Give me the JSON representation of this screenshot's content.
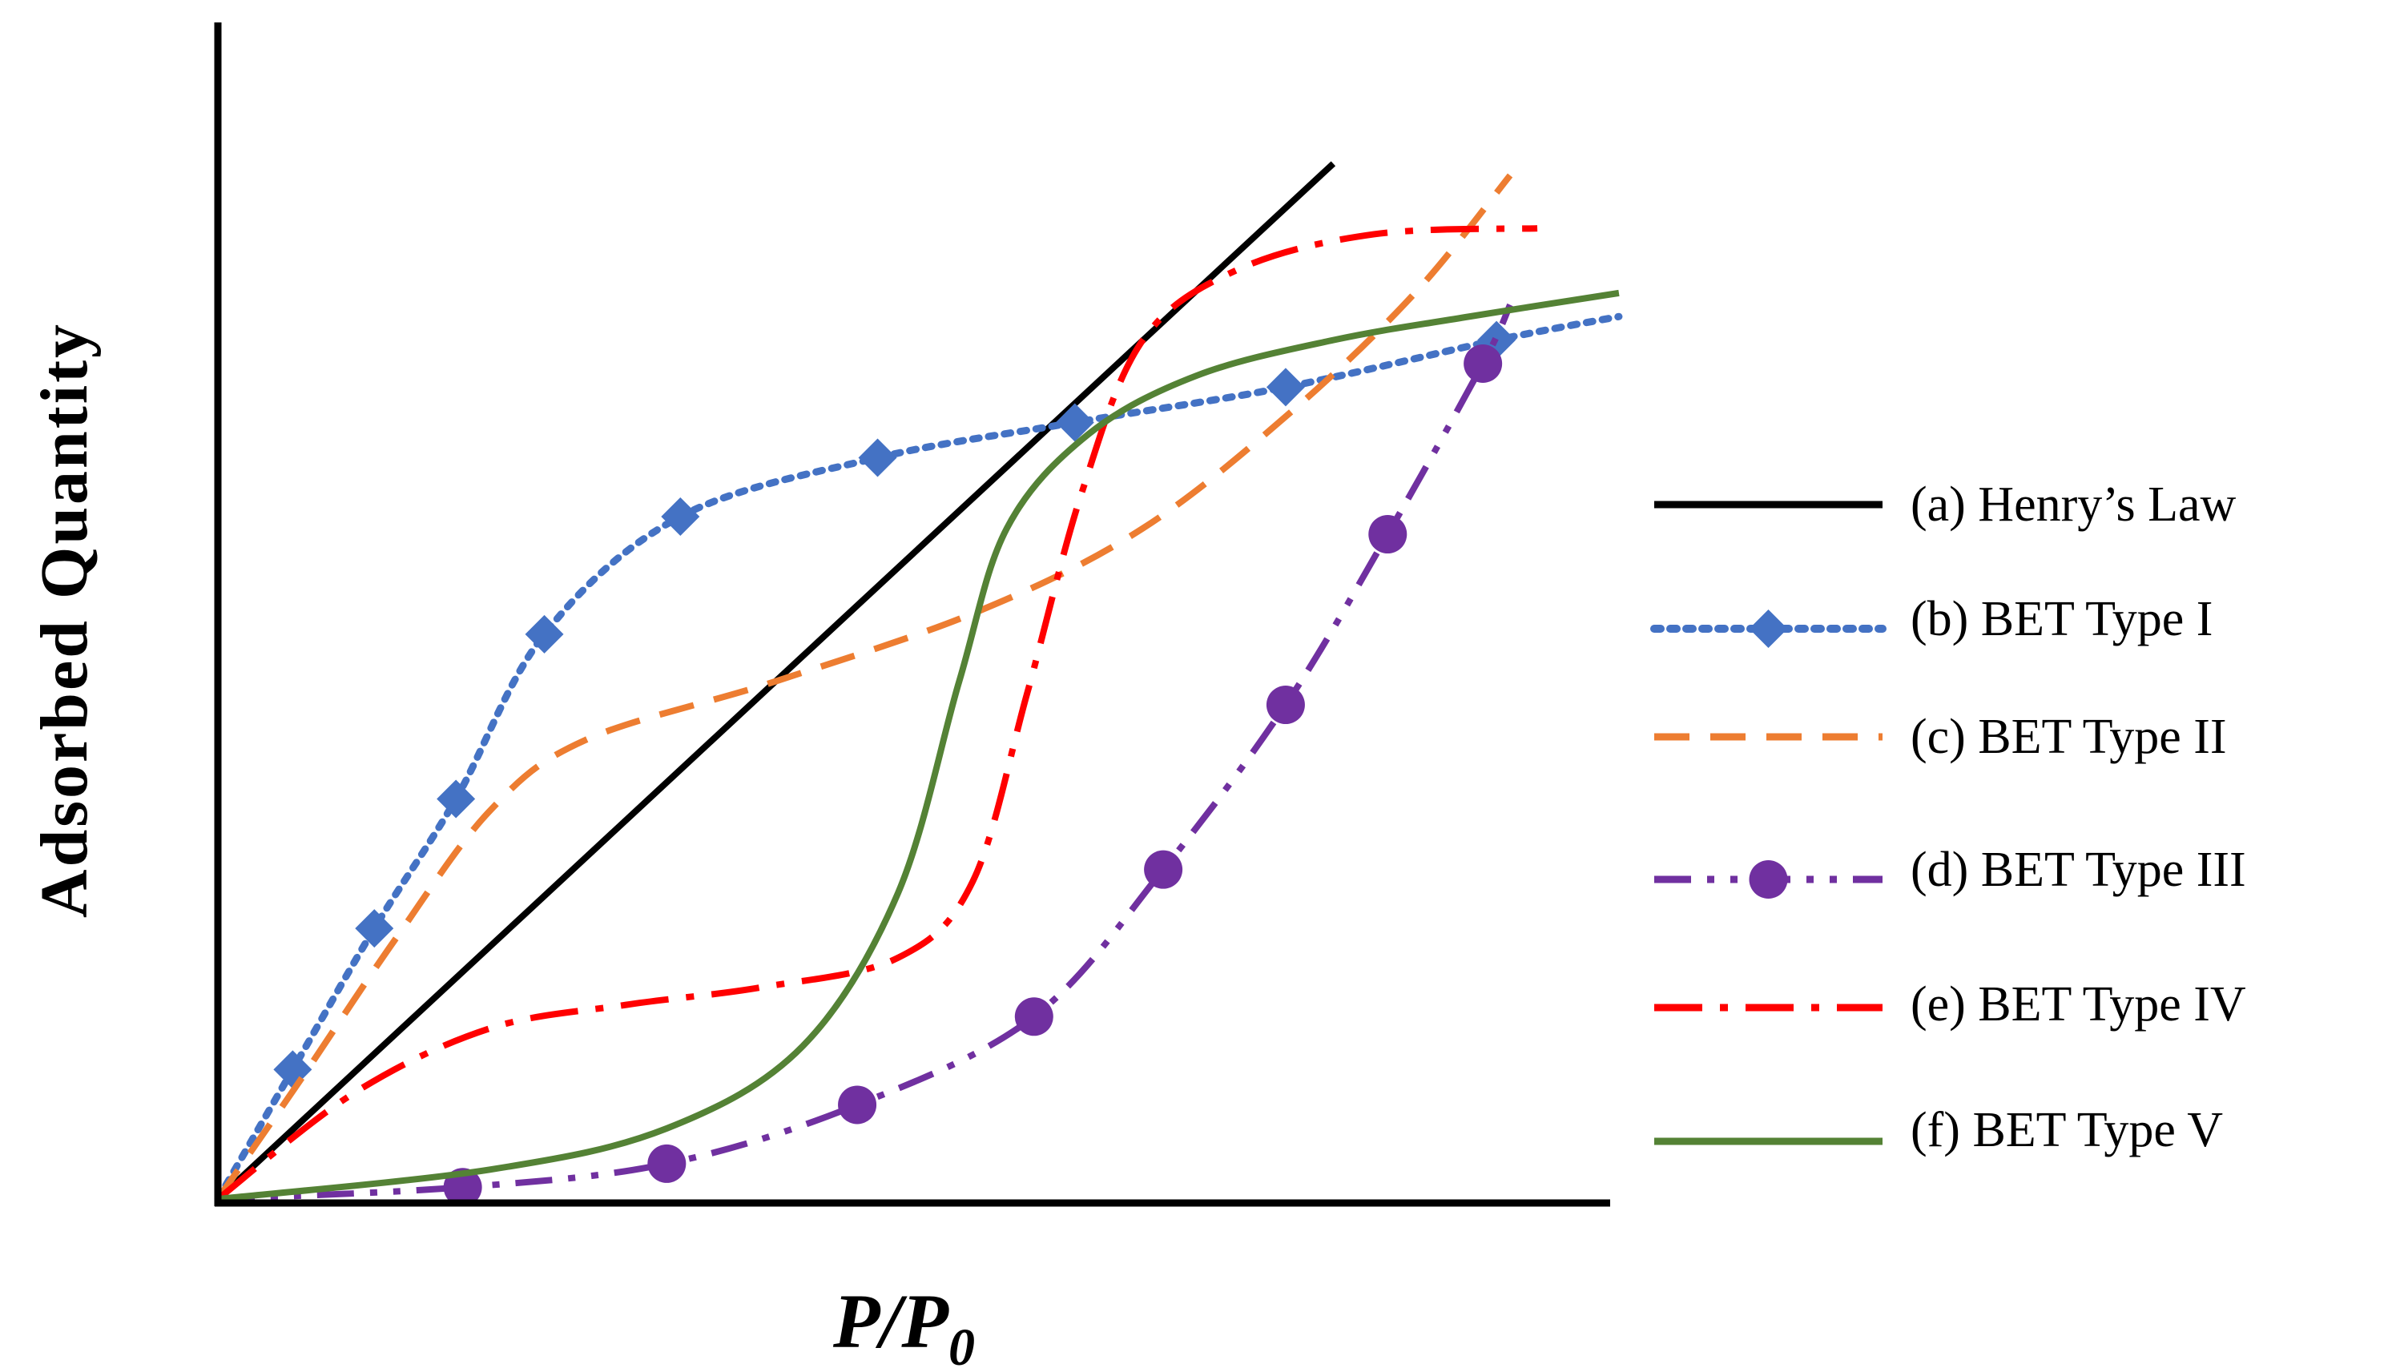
{
  "chart_data": {
    "type": "line",
    "title": "",
    "xlabel": "P/P",
    "xlabel_subscript": "0",
    "ylabel": "Adsorbed Quantity",
    "xlim": [
      0,
      1
    ],
    "ylim": [
      0,
      1
    ],
    "grid": false,
    "legend_position": "right",
    "series": [
      {
        "name": "(a)  Henry’s Law",
        "color": "#000000",
        "style": "solid",
        "marker": "none",
        "points": [
          [
            0,
            0
          ],
          [
            0.82,
            0.88
          ]
        ]
      },
      {
        "name": "(b)  BET Type I",
        "color": "#4472C4",
        "style": "dotted",
        "marker": "diamond",
        "points": [
          [
            0,
            0
          ],
          [
            0.055,
            0.11
          ],
          [
            0.115,
            0.23
          ],
          [
            0.175,
            0.34
          ],
          [
            0.24,
            0.48
          ],
          [
            0.34,
            0.58
          ],
          [
            0.485,
            0.63
          ],
          [
            0.63,
            0.66
          ],
          [
            0.785,
            0.69
          ],
          [
            0.94,
            0.73
          ],
          [
            1.03,
            0.75
          ]
        ],
        "marker_points": [
          [
            0.055,
            0.11
          ],
          [
            0.115,
            0.23
          ],
          [
            0.175,
            0.34
          ],
          [
            0.24,
            0.48
          ],
          [
            0.34,
            0.58
          ],
          [
            0.485,
            0.63
          ],
          [
            0.63,
            0.66
          ],
          [
            0.785,
            0.69
          ],
          [
            0.94,
            0.73
          ]
        ]
      },
      {
        "name": "(c)  BET Type II",
        "color": "#ED7D31",
        "style": "dashed",
        "marker": "none",
        "points": [
          [
            0,
            0
          ],
          [
            0.06,
            0.1
          ],
          [
            0.13,
            0.22
          ],
          [
            0.2,
            0.33
          ],
          [
            0.27,
            0.39
          ],
          [
            0.41,
            0.44
          ],
          [
            0.56,
            0.5
          ],
          [
            0.68,
            0.57
          ],
          [
            0.79,
            0.67
          ],
          [
            0.88,
            0.77
          ],
          [
            0.95,
            0.87
          ]
        ]
      },
      {
        "name": "(d)  BET Type III",
        "color": "#7030A0",
        "style": "dash-dot-dot",
        "marker": "circle",
        "points": [
          [
            0,
            0
          ],
          [
            0.18,
            0.01
          ],
          [
            0.33,
            0.03
          ],
          [
            0.47,
            0.08
          ],
          [
            0.6,
            0.155
          ],
          [
            0.695,
            0.28
          ],
          [
            0.785,
            0.42
          ],
          [
            0.86,
            0.565
          ],
          [
            0.93,
            0.71
          ],
          [
            0.95,
            0.76
          ]
        ],
        "marker_points": [
          [
            0.18,
            0.01
          ],
          [
            0.33,
            0.03
          ],
          [
            0.47,
            0.08
          ],
          [
            0.6,
            0.155
          ],
          [
            0.695,
            0.28
          ],
          [
            0.785,
            0.42
          ],
          [
            0.86,
            0.565
          ],
          [
            0.93,
            0.71
          ]
        ]
      },
      {
        "name": "(e)  BET Type IV",
        "color": "#FF0000",
        "style": "dash-dot",
        "marker": "none",
        "points": [
          [
            0,
            0
          ],
          [
            0.1,
            0.09
          ],
          [
            0.2,
            0.145
          ],
          [
            0.3,
            0.165
          ],
          [
            0.4,
            0.18
          ],
          [
            0.5,
            0.205
          ],
          [
            0.555,
            0.27
          ],
          [
            0.595,
            0.43
          ],
          [
            0.635,
            0.6
          ],
          [
            0.68,
            0.73
          ],
          [
            0.75,
            0.79
          ],
          [
            0.85,
            0.82
          ],
          [
            0.97,
            0.825
          ]
        ]
      },
      {
        "name": "(f)  BET Type V",
        "color": "#548235",
        "style": "solid",
        "marker": "none",
        "points": [
          [
            0,
            0
          ],
          [
            0.2,
            0.025
          ],
          [
            0.33,
            0.06
          ],
          [
            0.43,
            0.13
          ],
          [
            0.5,
            0.26
          ],
          [
            0.545,
            0.44
          ],
          [
            0.58,
            0.57
          ],
          [
            0.64,
            0.65
          ],
          [
            0.72,
            0.7
          ],
          [
            0.82,
            0.73
          ],
          [
            0.92,
            0.75
          ],
          [
            1.03,
            0.77
          ]
        ]
      }
    ]
  }
}
